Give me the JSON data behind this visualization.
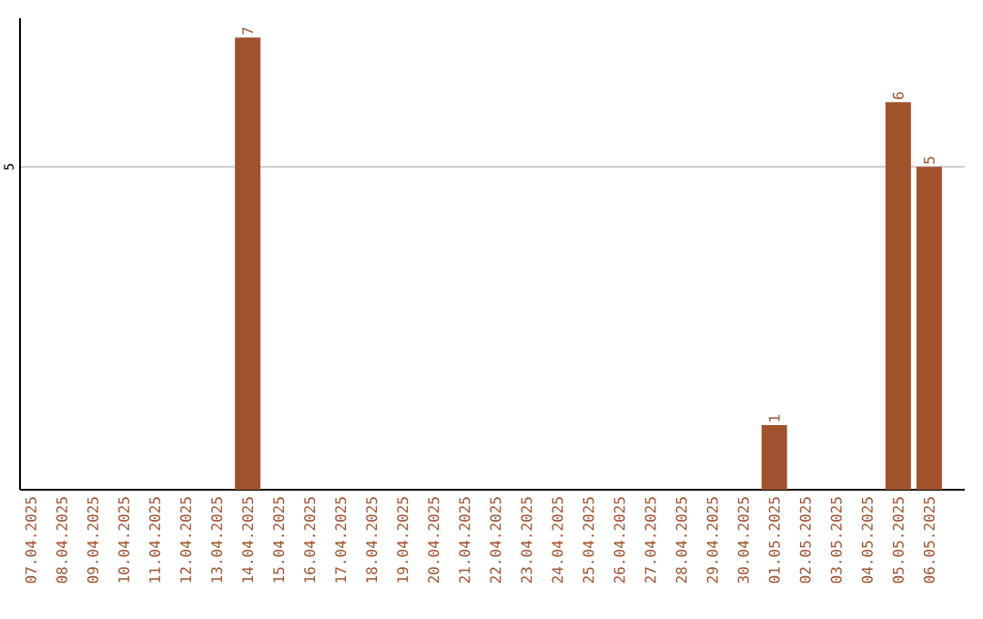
{
  "chart_data": {
    "type": "bar",
    "categories": [
      "07.04.2025",
      "08.04.2025",
      "09.04.2025",
      "10.04.2025",
      "11.04.2025",
      "12.04.2025",
      "13.04.2025",
      "14.04.2025",
      "15.04.2025",
      "16.04.2025",
      "17.04.2025",
      "18.04.2025",
      "19.04.2025",
      "20.04.2025",
      "21.04.2025",
      "22.04.2025",
      "23.04.2025",
      "24.04.2025",
      "25.04.2025",
      "26.04.2025",
      "27.04.2025",
      "28.04.2025",
      "29.04.2025",
      "30.04.2025",
      "01.05.2025",
      "02.05.2025",
      "03.05.2025",
      "04.05.2025",
      "05.05.2025",
      "06.05.2025"
    ],
    "values": [
      0,
      0,
      0,
      0,
      0,
      0,
      0,
      7,
      0,
      0,
      0,
      0,
      0,
      0,
      0,
      0,
      0,
      0,
      0,
      0,
      0,
      0,
      0,
      0,
      1,
      0,
      0,
      0,
      6,
      5
    ],
    "value_labels": [
      null,
      null,
      null,
      null,
      null,
      null,
      null,
      "7",
      null,
      null,
      null,
      null,
      null,
      null,
      null,
      null,
      null,
      null,
      null,
      null,
      null,
      null,
      null,
      null,
      "1",
      null,
      null,
      null,
      "6",
      "5"
    ],
    "color": "#a0522d",
    "ylim": [
      0,
      7.3
    ],
    "yticks": [
      5
    ],
    "grid": "y"
  }
}
